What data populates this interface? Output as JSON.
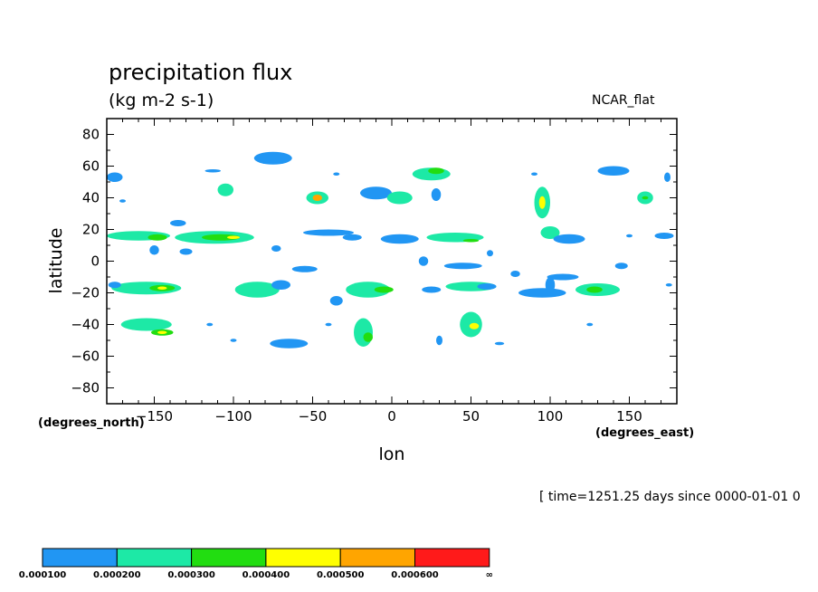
{
  "chart_data": {
    "type": "heatmap",
    "title": "precipitation flux",
    "units": "(kg m-2 s-1)",
    "palette_name": "NCAR_flat",
    "ylabel": "latitude",
    "xlabel": "lon",
    "y_units": "(degrees_north)",
    "x_units": "(degrees_east)",
    "time_info": "[ time=1251.25 days since 0000-01-01 0",
    "xlim": [
      -180,
      180
    ],
    "ylim": [
      -90,
      90
    ],
    "x_ticks": [
      "-150",
      "-100",
      "-50",
      "0",
      "50",
      "100",
      "150"
    ],
    "y_ticks": [
      "80",
      "60",
      "40",
      "20",
      "0",
      "-20",
      "-40",
      "-60",
      "-80"
    ],
    "grid": false,
    "colorbar": {
      "levels": [
        "0.000100",
        "0.000200",
        "0.000300",
        "0.000400",
        "0.000500",
        "0.000600",
        "∞"
      ],
      "colors": [
        "#2196f3",
        "#1de9a6",
        "#22dd11",
        "#ffff00",
        "#ffa500",
        "#ff1a1a"
      ]
    },
    "cells": [
      {
        "lon": -175,
        "lat": 53,
        "rx": 5,
        "ry": 3,
        "level": 1
      },
      {
        "lon": -170,
        "lat": 38,
        "rx": 2,
        "ry": 1,
        "level": 1
      },
      {
        "lon": -160,
        "lat": 16,
        "rx": 20,
        "ry": 3,
        "level": 2
      },
      {
        "lon": -148,
        "lat": 15,
        "rx": 6,
        "ry": 2,
        "level": 3
      },
      {
        "lon": -150,
        "lat": 7,
        "rx": 3,
        "ry": 3,
        "level": 1
      },
      {
        "lon": -135,
        "lat": 24,
        "rx": 5,
        "ry": 2,
        "level": 1
      },
      {
        "lon": -130,
        "lat": 6,
        "rx": 4,
        "ry": 2,
        "level": 1
      },
      {
        "lon": -112,
        "lat": 15,
        "rx": 25,
        "ry": 4,
        "level": 2
      },
      {
        "lon": -108,
        "lat": 15,
        "rx": 12,
        "ry": 2,
        "level": 3
      },
      {
        "lon": -100,
        "lat": 15,
        "rx": 4,
        "ry": 1,
        "level": 4
      },
      {
        "lon": -113,
        "lat": 57,
        "rx": 5,
        "ry": 1,
        "level": 1
      },
      {
        "lon": -105,
        "lat": 45,
        "rx": 5,
        "ry": 4,
        "level": 2
      },
      {
        "lon": -75,
        "lat": 65,
        "rx": 12,
        "ry": 4,
        "level": 1
      },
      {
        "lon": -73,
        "lat": 8,
        "rx": 3,
        "ry": 2,
        "level": 1
      },
      {
        "lon": -55,
        "lat": -5,
        "rx": 8,
        "ry": 2,
        "level": 1
      },
      {
        "lon": -47,
        "lat": 40,
        "rx": 7,
        "ry": 4,
        "level": 2
      },
      {
        "lon": -47,
        "lat": 40,
        "rx": 3,
        "ry": 2,
        "level": 5
      },
      {
        "lon": -40,
        "lat": 18,
        "rx": 16,
        "ry": 2,
        "level": 1
      },
      {
        "lon": -25,
        "lat": 15,
        "rx": 6,
        "ry": 2,
        "level": 1
      },
      {
        "lon": -35,
        "lat": 55,
        "rx": 2,
        "ry": 1,
        "level": 1
      },
      {
        "lon": -10,
        "lat": 43,
        "rx": 10,
        "ry": 4,
        "level": 1
      },
      {
        "lon": 5,
        "lat": 40,
        "rx": 8,
        "ry": 4,
        "level": 2
      },
      {
        "lon": 25,
        "lat": 55,
        "rx": 12,
        "ry": 4,
        "level": 2
      },
      {
        "lon": 28,
        "lat": 57,
        "rx": 5,
        "ry": 2,
        "level": 3
      },
      {
        "lon": 28,
        "lat": 42,
        "rx": 3,
        "ry": 4,
        "level": 1
      },
      {
        "lon": 5,
        "lat": 14,
        "rx": 12,
        "ry": 3,
        "level": 1
      },
      {
        "lon": 40,
        "lat": 15,
        "rx": 18,
        "ry": 3,
        "level": 2
      },
      {
        "lon": 50,
        "lat": 13,
        "rx": 5,
        "ry": 1,
        "level": 3
      },
      {
        "lon": 20,
        "lat": 0,
        "rx": 3,
        "ry": 3,
        "level": 1
      },
      {
        "lon": 45,
        "lat": -3,
        "rx": 12,
        "ry": 2,
        "level": 1
      },
      {
        "lon": 62,
        "lat": 5,
        "rx": 2,
        "ry": 2,
        "level": 1
      },
      {
        "lon": 95,
        "lat": 37,
        "rx": 5,
        "ry": 10,
        "level": 2
      },
      {
        "lon": 95,
        "lat": 37,
        "rx": 2,
        "ry": 4,
        "level": 4
      },
      {
        "lon": 90,
        "lat": 55,
        "rx": 2,
        "ry": 1,
        "level": 1
      },
      {
        "lon": 100,
        "lat": 18,
        "rx": 6,
        "ry": 4,
        "level": 2
      },
      {
        "lon": 112,
        "lat": 14,
        "rx": 10,
        "ry": 3,
        "level": 1
      },
      {
        "lon": 140,
        "lat": 57,
        "rx": 10,
        "ry": 3,
        "level": 1
      },
      {
        "lon": 160,
        "lat": 40,
        "rx": 5,
        "ry": 4,
        "level": 2
      },
      {
        "lon": 160,
        "lat": 40,
        "rx": 2,
        "ry": 1,
        "level": 3
      },
      {
        "lon": 174,
        "lat": 53,
        "rx": 2,
        "ry": 3,
        "level": 1
      },
      {
        "lon": 172,
        "lat": 16,
        "rx": 6,
        "ry": 2,
        "level": 1
      },
      {
        "lon": 150,
        "lat": 16,
        "rx": 2,
        "ry": 1,
        "level": 1
      },
      {
        "lon": -155,
        "lat": -17,
        "rx": 22,
        "ry": 4,
        "level": 2
      },
      {
        "lon": -145,
        "lat": -17,
        "rx": 8,
        "ry": 2,
        "level": 3
      },
      {
        "lon": -145,
        "lat": -17,
        "rx": 3,
        "ry": 1,
        "level": 4
      },
      {
        "lon": -175,
        "lat": -15,
        "rx": 4,
        "ry": 2,
        "level": 1
      },
      {
        "lon": -155,
        "lat": -40,
        "rx": 16,
        "ry": 4,
        "level": 2
      },
      {
        "lon": -145,
        "lat": -45,
        "rx": 7,
        "ry": 2,
        "level": 3
      },
      {
        "lon": -145,
        "lat": -45,
        "rx": 3,
        "ry": 1,
        "level": 4
      },
      {
        "lon": -115,
        "lat": -40,
        "rx": 2,
        "ry": 1,
        "level": 1
      },
      {
        "lon": -100,
        "lat": -50,
        "rx": 2,
        "ry": 1,
        "level": 1
      },
      {
        "lon": -85,
        "lat": -18,
        "rx": 14,
        "ry": 5,
        "level": 2
      },
      {
        "lon": -70,
        "lat": -15,
        "rx": 6,
        "ry": 3,
        "level": 1
      },
      {
        "lon": -65,
        "lat": -52,
        "rx": 12,
        "ry": 3,
        "level": 1
      },
      {
        "lon": -15,
        "lat": -18,
        "rx": 14,
        "ry": 5,
        "level": 2
      },
      {
        "lon": -5,
        "lat": -18,
        "rx": 6,
        "ry": 2,
        "level": 3
      },
      {
        "lon": -35,
        "lat": -25,
        "rx": 4,
        "ry": 3,
        "level": 1
      },
      {
        "lon": -18,
        "lat": -45,
        "rx": 6,
        "ry": 9,
        "level": 2
      },
      {
        "lon": -15,
        "lat": -48,
        "rx": 3,
        "ry": 3,
        "level": 3
      },
      {
        "lon": -40,
        "lat": -40,
        "rx": 2,
        "ry": 1,
        "level": 1
      },
      {
        "lon": 25,
        "lat": -18,
        "rx": 6,
        "ry": 2,
        "level": 1
      },
      {
        "lon": 50,
        "lat": -16,
        "rx": 16,
        "ry": 3,
        "level": 2
      },
      {
        "lon": 60,
        "lat": -16,
        "rx": 6,
        "ry": 2,
        "level": 1
      },
      {
        "lon": 50,
        "lat": -40,
        "rx": 7,
        "ry": 8,
        "level": 2
      },
      {
        "lon": 52,
        "lat": -41,
        "rx": 3,
        "ry": 2,
        "level": 4
      },
      {
        "lon": 68,
        "lat": -52,
        "rx": 3,
        "ry": 1,
        "level": 1
      },
      {
        "lon": 30,
        "lat": -50,
        "rx": 2,
        "ry": 3,
        "level": 1
      },
      {
        "lon": 95,
        "lat": -20,
        "rx": 15,
        "ry": 3,
        "level": 1
      },
      {
        "lon": 108,
        "lat": -10,
        "rx": 10,
        "ry": 2,
        "level": 1
      },
      {
        "lon": 100,
        "lat": -15,
        "rx": 3,
        "ry": 5,
        "level": 1
      },
      {
        "lon": 130,
        "lat": -18,
        "rx": 14,
        "ry": 4,
        "level": 2
      },
      {
        "lon": 128,
        "lat": -18,
        "rx": 5,
        "ry": 2,
        "level": 3
      },
      {
        "lon": 145,
        "lat": -3,
        "rx": 4,
        "ry": 2,
        "level": 1
      },
      {
        "lon": 125,
        "lat": -40,
        "rx": 2,
        "ry": 1,
        "level": 1
      },
      {
        "lon": 175,
        "lat": -15,
        "rx": 2,
        "ry": 1,
        "level": 1
      },
      {
        "lon": 78,
        "lat": -8,
        "rx": 3,
        "ry": 2,
        "level": 1
      }
    ]
  }
}
